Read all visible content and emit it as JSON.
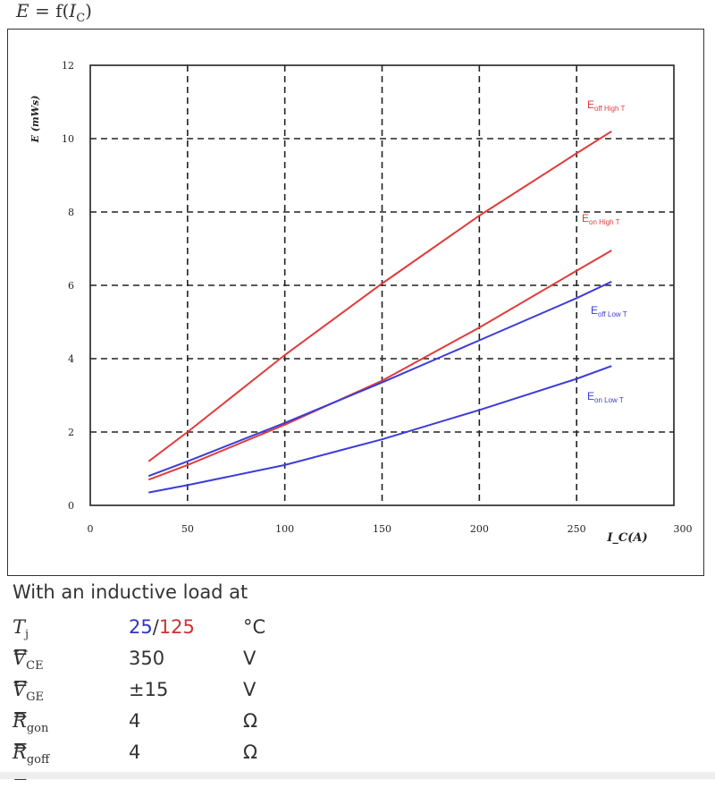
{
  "header": {
    "title_prefix": "E",
    "title_eq": " = f(",
    "title_var": "I",
    "title_sub": "C",
    "title_suffix": ")"
  },
  "colors": {
    "high_t": "#e03c3c",
    "low_t": "#3c3cd8",
    "grid": "#222222"
  },
  "chart_data": {
    "type": "line",
    "xlabel": "I_C(A)",
    "ylabel": "E (mWs)",
    "xlim": [
      0,
      300
    ],
    "ylim": [
      0,
      12
    ],
    "xticks": [
      0,
      50,
      100,
      150,
      200,
      250,
      300
    ],
    "yticks": [
      0,
      2,
      4,
      6,
      8,
      10,
      12
    ],
    "grid": true,
    "series": [
      {
        "name": "Eoff High T",
        "label_main": "E",
        "label_sub": "off High T",
        "color": "#e03c3c",
        "x": [
          30,
          50,
          100,
          150,
          200,
          250,
          268
        ],
        "y": [
          1.2,
          2.0,
          4.1,
          6.05,
          7.9,
          9.6,
          10.2
        ]
      },
      {
        "name": "Eon High T",
        "label_main": "E",
        "label_sub": "on High T",
        "color": "#e03c3c",
        "x": [
          30,
          50,
          100,
          150,
          200,
          250,
          268
        ],
        "y": [
          0.7,
          1.1,
          2.2,
          3.4,
          4.85,
          6.4,
          6.95
        ]
      },
      {
        "name": "Eoff Low T",
        "label_main": "E",
        "label_sub": "off Low T",
        "color": "#3c3cd8",
        "x": [
          30,
          50,
          100,
          150,
          200,
          250,
          268
        ],
        "y": [
          0.8,
          1.2,
          2.25,
          3.35,
          4.5,
          5.65,
          6.1
        ]
      },
      {
        "name": "Eon Low T",
        "label_main": "E",
        "label_sub": "on Low T",
        "color": "#3c3cd8",
        "x": [
          30,
          50,
          100,
          150,
          200,
          250,
          268
        ],
        "y": [
          0.35,
          0.55,
          1.1,
          1.8,
          2.6,
          3.45,
          3.8
        ]
      }
    ]
  },
  "conditions": {
    "intro": "With an inductive load at",
    "rows": [
      {
        "label": "T",
        "sub": "j",
        "eq": " =",
        "value_blue": "25",
        "value_sep": "/",
        "value_red": "125",
        "unit": "°C"
      },
      {
        "label": "V",
        "sub": "CE",
        "eq": " =",
        "value": "350",
        "unit": "V"
      },
      {
        "label": "V",
        "sub": "GE",
        "eq": " =",
        "value": "±15",
        "unit": "V"
      },
      {
        "label": "R",
        "sub": "gon",
        "eq": " =",
        "value": "4",
        "unit": "Ω"
      },
      {
        "label": "R",
        "sub": "goff",
        "eq": " =",
        "value": "4",
        "unit": "Ω"
      }
    ]
  }
}
